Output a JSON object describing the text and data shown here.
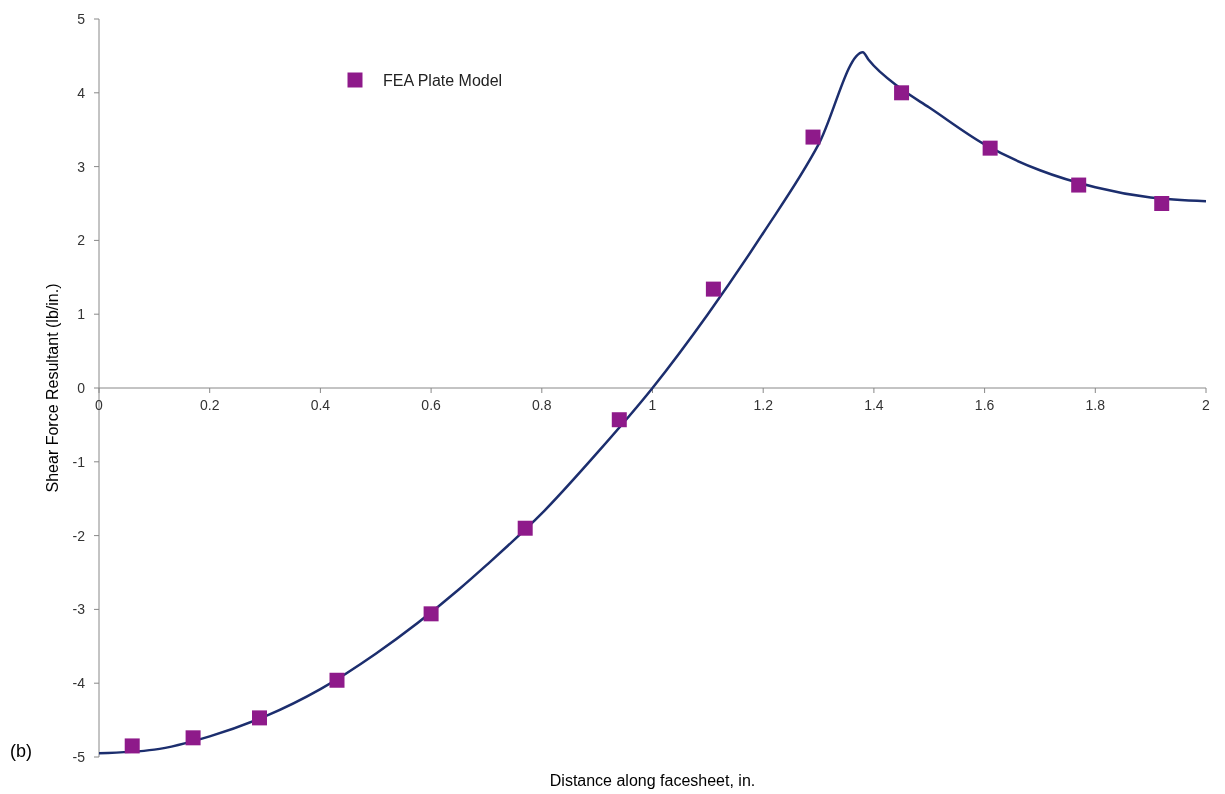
{
  "chart_data": {
    "type": "line",
    "xlabel": "Distance along facesheet, in.",
    "ylabel": "Shear Force Resultant (lb/in.)",
    "annotations": [
      "(b)"
    ],
    "xlim": [
      0,
      2
    ],
    "ylim": [
      -5,
      5
    ],
    "xticks": [
      0,
      0.2,
      0.4,
      0.6,
      0.8,
      1,
      1.2,
      1.4,
      1.6,
      1.8,
      2
    ],
    "yticks": [
      -5,
      -4,
      -3,
      -2,
      -1,
      0,
      1,
      2,
      3,
      4,
      5
    ],
    "grid": false,
    "legend": "top left",
    "series": [
      {
        "color": "#1c2e6e",
        "marker": "none",
        "x": [
          0,
          0.1,
          0.2,
          0.3,
          0.4,
          0.5,
          0.65,
          0.7,
          0.8,
          0.9,
          1.0,
          1.1,
          1.2,
          1.3,
          1.38,
          1.39,
          1.45,
          1.5,
          1.6,
          1.7,
          1.8,
          1.9,
          2.0
        ],
        "values": [
          -4.95,
          -4.9,
          -4.72,
          -4.45,
          -4.08,
          -3.6,
          -2.73,
          -2.4,
          -1.7,
          -0.88,
          0,
          1.0,
          2.1,
          3.3,
          4.55,
          4.45,
          4.05,
          3.8,
          3.3,
          2.95,
          2.72,
          2.58,
          2.53
        ]
      },
      {
        "type": "scatter",
        "name": "FEA Plate Model",
        "color": "#8e1a8a",
        "marker": "square",
        "x": [
          0.06,
          0.17,
          0.29,
          0.43,
          0.6,
          0.77,
          0.94,
          1.11,
          1.29,
          1.45,
          1.61,
          1.77,
          1.92
        ],
        "values": [
          -4.85,
          -4.74,
          -4.47,
          -3.96,
          -3.06,
          -1.9,
          -0.43,
          1.34,
          3.4,
          4.0,
          3.25,
          2.75,
          2.5
        ]
      }
    ]
  }
}
